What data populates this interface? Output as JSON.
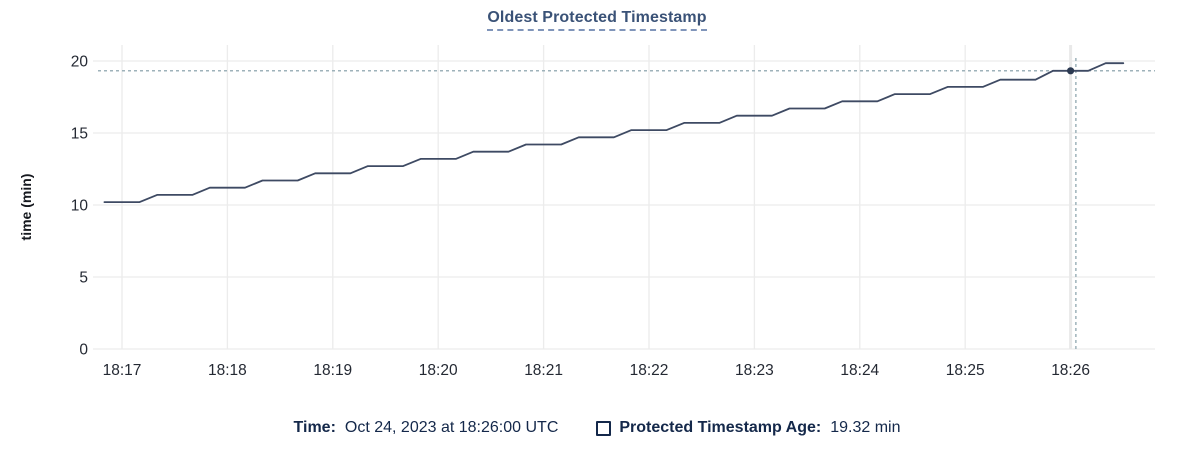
{
  "chart": {
    "title": "Oldest Protected Timestamp"
  },
  "footer": {
    "time_label": "Time:",
    "time_value": "Oct 24, 2023 at 18:26:00 UTC",
    "series_label": "Protected Timestamp Age:",
    "series_value": "19.32 min"
  },
  "colors": {
    "title": "#3a5277",
    "title_underline": "#8095ba",
    "line": "#3e4a63",
    "dot": "#2c3a52",
    "grid": "#ececec",
    "guide": "#e9e9e9",
    "crosshair": "#9eb2ba",
    "axis_text": "#242933",
    "footer_text": "#14284a"
  },
  "chart_data": {
    "type": "line",
    "title": "Oldest Protected Timestamp",
    "xlabel": "",
    "ylabel": "time (min)",
    "ylim": [
      0,
      20
    ],
    "yticks": [
      0,
      5,
      10,
      15,
      20
    ],
    "xticks": [
      "18:17",
      "18:18",
      "18:19",
      "18:20",
      "18:21",
      "18:22",
      "18:23",
      "18:24",
      "18:25",
      "18:26"
    ],
    "x_tick_interval": "1 min",
    "grid": true,
    "legend_position": "bottom",
    "series": [
      {
        "name": "Protected Timestamp Age",
        "unit": "min",
        "start_offset_seconds": -10,
        "interval_seconds": 10,
        "values": [
          10.2,
          10.2,
          10.2,
          10.7,
          10.7,
          10.7,
          11.2,
          11.2,
          11.2,
          11.7,
          11.7,
          11.7,
          12.2,
          12.2,
          12.2,
          12.7,
          12.7,
          12.7,
          13.2,
          13.2,
          13.2,
          13.7,
          13.7,
          13.7,
          14.2,
          14.2,
          14.2,
          14.7,
          14.7,
          14.7,
          15.2,
          15.2,
          15.2,
          15.7,
          15.7,
          15.7,
          16.2,
          16.2,
          16.2,
          16.7,
          16.7,
          16.7,
          17.2,
          17.2,
          17.2,
          17.7,
          17.7,
          17.7,
          18.2,
          18.2,
          18.2,
          18.7,
          18.7,
          18.7,
          19.32,
          19.32,
          19.32,
          19.85,
          19.85
        ]
      }
    ],
    "hover": {
      "index": 55,
      "time": "18:26:00",
      "value": 19.32,
      "guide_x_seconds": 543
    }
  }
}
